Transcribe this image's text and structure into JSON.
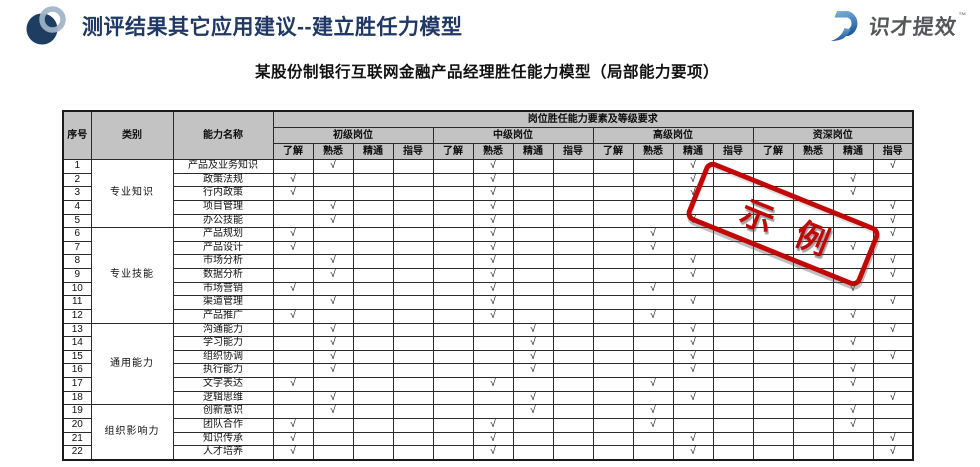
{
  "page": {
    "title": "测评结果其它应用建议--建立胜任力模型",
    "subtitle": "某股份制银行互联网金融产品经理胜任能力模型（局部能力要项）"
  },
  "logo": {
    "text": "识才提效",
    "tm": "™"
  },
  "stamp": {
    "text": "示例",
    "color": "#C00000"
  },
  "colors": {
    "title_navy": "#1F3864",
    "stamp_red": "#C00000",
    "header_gray": "#C3C3C3",
    "logo_blue_light": "#7FB2E5",
    "logo_blue_dark": "#1C5C99",
    "logo_text_gray": "#55575B"
  },
  "table": {
    "col_headers": {
      "no": "序号",
      "category": "类别",
      "ability": "能力名称",
      "span_title": "岗位胜任能力要素及等级要求"
    },
    "tiers": [
      "初级岗位",
      "中级岗位",
      "高级岗位",
      "资深岗位"
    ],
    "levels": [
      "了解",
      "熟悉",
      "精通",
      "指导"
    ],
    "check_symbol": "√",
    "categories": [
      {
        "label": "专业知识",
        "start": 1,
        "end": 5
      },
      {
        "label": "专业技能",
        "start": 6,
        "end": 12
      },
      {
        "label": "通用能力",
        "start": 13,
        "end": 18
      },
      {
        "label": "组织影响力",
        "start": 19,
        "end": 22
      }
    ],
    "rows": [
      {
        "no": 1,
        "ability": "产品及业务知识",
        "marks": [
          "熟悉",
          "熟悉",
          "精通",
          "指导"
        ]
      },
      {
        "no": 2,
        "ability": "政策法规",
        "marks": [
          "了解",
          "熟悉",
          "精通",
          "精通"
        ]
      },
      {
        "no": 3,
        "ability": "行内政策",
        "marks": [
          "了解",
          "熟悉",
          "精通",
          "精通"
        ]
      },
      {
        "no": 4,
        "ability": "项目管理",
        "marks": [
          "熟悉",
          "熟悉",
          "精通",
          "指导"
        ]
      },
      {
        "no": 5,
        "ability": "办公技能",
        "marks": [
          "熟悉",
          "熟悉",
          "精通",
          "指导"
        ]
      },
      {
        "no": 6,
        "ability": "产品规划",
        "marks": [
          "了解",
          "熟悉",
          "熟悉",
          "指导"
        ]
      },
      {
        "no": 7,
        "ability": "产品设计",
        "marks": [
          "了解",
          "熟悉",
          "熟悉",
          "精通"
        ]
      },
      {
        "no": 8,
        "ability": "市场分析",
        "marks": [
          "熟悉",
          "熟悉",
          "精通",
          "指导"
        ]
      },
      {
        "no": 9,
        "ability": "数据分析",
        "marks": [
          "熟悉",
          "熟悉",
          "精通",
          "指导"
        ]
      },
      {
        "no": 10,
        "ability": "市场营销",
        "marks": [
          "了解",
          "熟悉",
          "熟悉",
          "精通"
        ]
      },
      {
        "no": 11,
        "ability": "渠道管理",
        "marks": [
          "熟悉",
          "熟悉",
          "精通",
          "指导"
        ]
      },
      {
        "no": 12,
        "ability": "产品推广",
        "marks": [
          "了解",
          "熟悉",
          "熟悉",
          "精通"
        ]
      },
      {
        "no": 13,
        "ability": "沟通能力",
        "marks": [
          "熟悉",
          "精通",
          "精通",
          "指导"
        ]
      },
      {
        "no": 14,
        "ability": "学习能力",
        "marks": [
          "熟悉",
          "精通",
          "精通",
          "精通"
        ]
      },
      {
        "no": 15,
        "ability": "组织协调",
        "marks": [
          "熟悉",
          "精通",
          "精通",
          "指导"
        ]
      },
      {
        "no": 16,
        "ability": "执行能力",
        "marks": [
          "熟悉",
          "精通",
          "精通",
          "精通"
        ]
      },
      {
        "no": 17,
        "ability": "文字表达",
        "marks": [
          "了解",
          "熟悉",
          "熟悉",
          "精通"
        ]
      },
      {
        "no": 18,
        "ability": "逻辑思维",
        "marks": [
          "熟悉",
          "精通",
          "精通",
          "指导"
        ]
      },
      {
        "no": 19,
        "ability": "创新意识",
        "marks": [
          "熟悉",
          "精通",
          "熟悉",
          "精通"
        ]
      },
      {
        "no": 20,
        "ability": "团队合作",
        "marks": [
          "了解",
          "熟悉",
          "熟悉",
          "精通"
        ]
      },
      {
        "no": 21,
        "ability": "知识传承",
        "marks": [
          "了解",
          "熟悉",
          "精通",
          "指导"
        ]
      },
      {
        "no": 22,
        "ability": "人才培养",
        "marks": [
          "了解",
          "熟悉",
          "精通",
          "指导"
        ]
      }
    ]
  }
}
